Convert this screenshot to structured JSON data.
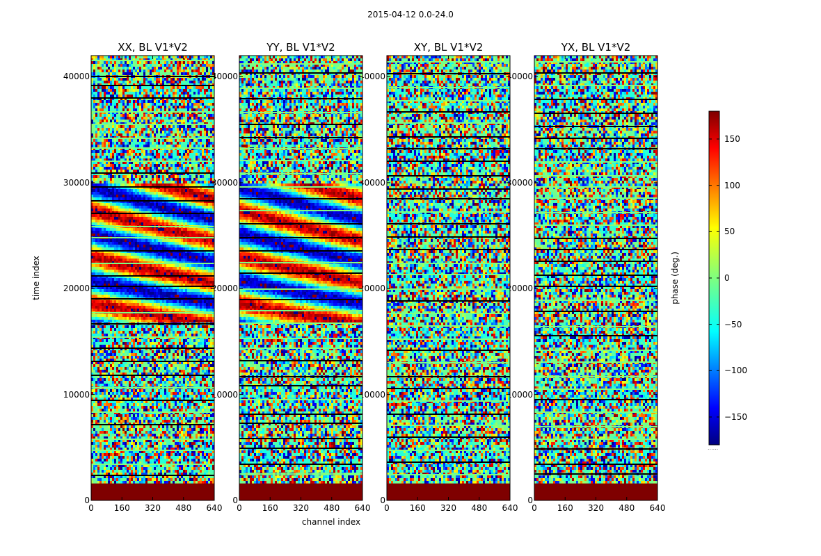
{
  "figure": {
    "suptitle": "2015-04-12 0.0-24.0",
    "colorbar_label": "phase (deg.)",
    "colorbar_ticks": [
      "150",
      "100",
      "50",
      "0",
      "−50",
      "−100",
      "−150"
    ],
    "colorbar_footer": "......"
  },
  "chart_data": {
    "type": "heatmap",
    "title": "2015-04-12 0.0-24.0",
    "xlabel": "channel index",
    "ylabel": "time index",
    "colorbar_label": "phase (deg.)",
    "colormap": "jet",
    "clim": [
      -180,
      180
    ],
    "xlim": [
      0,
      640
    ],
    "ylim": [
      0,
      42000
    ],
    "xticks": [
      0,
      160,
      320,
      480,
      640
    ],
    "xtick_labels": [
      "0",
      "160",
      "320",
      "480",
      "640"
    ],
    "yticks": [
      0,
      10000,
      20000,
      30000,
      40000
    ],
    "ytick_labels": [
      "0",
      "10000",
      "20000",
      "30000",
      "40000"
    ],
    "colorbar_ticks": [
      150,
      100,
      50,
      0,
      -50,
      -100,
      -150
    ],
    "panels": [
      {
        "title": "XX, BL V1*V2",
        "coherent_time_range": [
          17000,
          30000
        ]
      },
      {
        "title": "YY, BL V1*V2",
        "coherent_time_range": [
          17000,
          30000
        ]
      },
      {
        "title": "XY, BL V1*V2",
        "coherent_time_range": null
      },
      {
        "title": "YX, BL V1*V2",
        "coherent_time_range": null
      }
    ],
    "flagged_block": {
      "time_range": [
        0,
        1600
      ],
      "phase": 180,
      "color": "#7f0000"
    },
    "background_phase": "noise"
  }
}
